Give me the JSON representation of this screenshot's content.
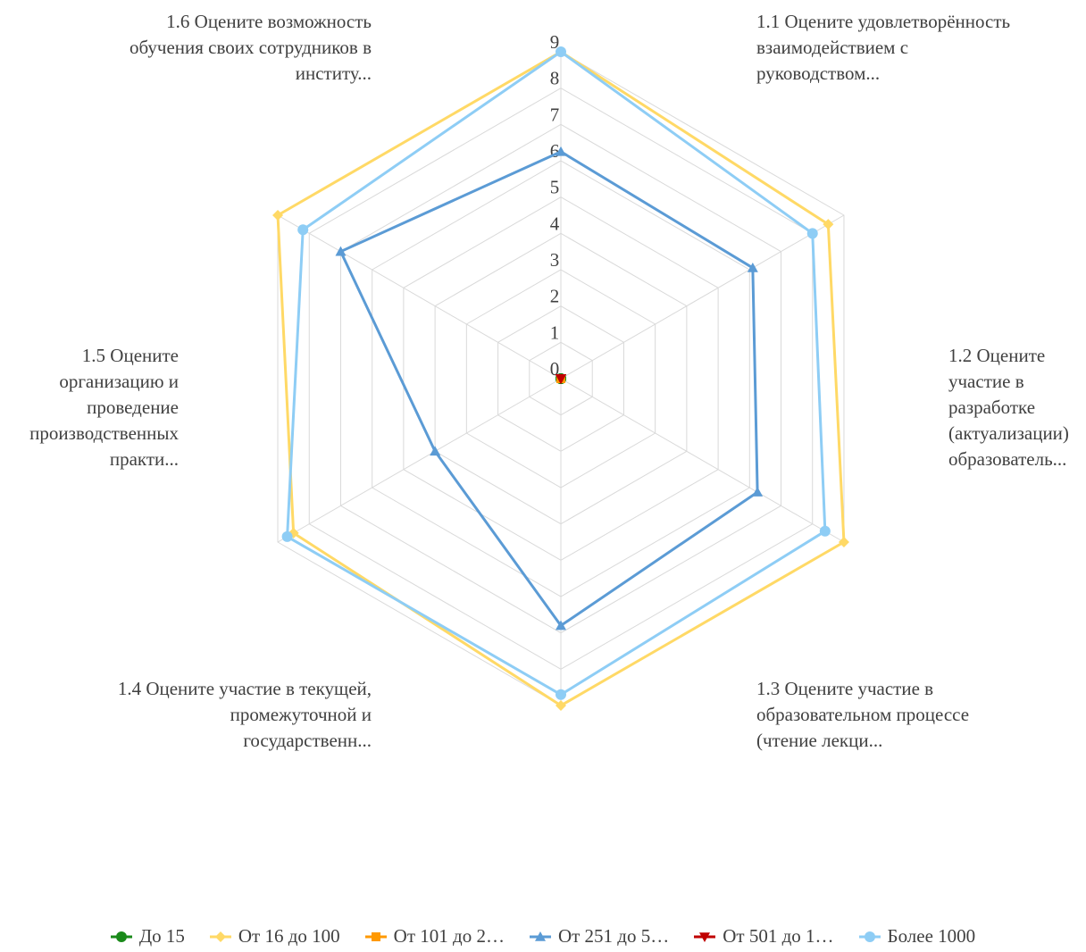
{
  "chart_data": {
    "type": "radar",
    "categories": [
      [
        "1.1 Оцените удовлетворённость",
        "взаимодействием с",
        "руководством..."
      ],
      [
        "1.2 Оцените",
        "участие в",
        "разработке",
        "(актуализации)",
        "образователь..."
      ],
      [
        "1.3 Оцените участие в",
        "образовательном процессе",
        "(чтение лекци..."
      ],
      [
        "1.4 Оцените участие в текущей,",
        "промежуточной и",
        "государственн..."
      ],
      [
        "1.5 Оцените",
        "организацию и",
        "проведение",
        "производственных",
        "практи..."
      ],
      [
        "1.6 Оцените возможность",
        "обучения своих сотрудников в",
        "институ..."
      ]
    ],
    "r_ticks": [
      "0",
      "1",
      "2",
      "3",
      "4",
      "5",
      "6",
      "7",
      "8",
      "9"
    ],
    "rlim": [
      0,
      9
    ],
    "grid": true,
    "legend_position": "bottom",
    "series": [
      {
        "name": "До 15",
        "color": "#1a8a1a",
        "marker": "circle",
        "values": [
          0,
          0,
          0,
          0,
          0,
          0
        ]
      },
      {
        "name": "От 16 до 100",
        "color": "#ffd966",
        "marker": "diamond",
        "values": [
          9,
          8.5,
          9,
          9,
          8.5,
          9
        ]
      },
      {
        "name": "От 101 до 2…",
        "color": "#ff9900",
        "marker": "square",
        "values": [
          0,
          0,
          0,
          0,
          0,
          0
        ]
      },
      {
        "name": "От 251 до 5…",
        "color": "#5b9bd5",
        "marker": "triangle",
        "values": [
          6.25,
          6.1,
          6.25,
          6.8,
          4,
          7
        ]
      },
      {
        "name": "От 501 до 1…",
        "color": "#c00000",
        "marker": "triangle-down",
        "values": [
          0,
          0,
          0,
          0,
          0,
          0
        ]
      },
      {
        "name": "Более 1000",
        "color": "#8ecdf5",
        "marker": "circle",
        "values": [
          9,
          8,
          8.4,
          8.7,
          8.7,
          8.2
        ]
      }
    ]
  }
}
